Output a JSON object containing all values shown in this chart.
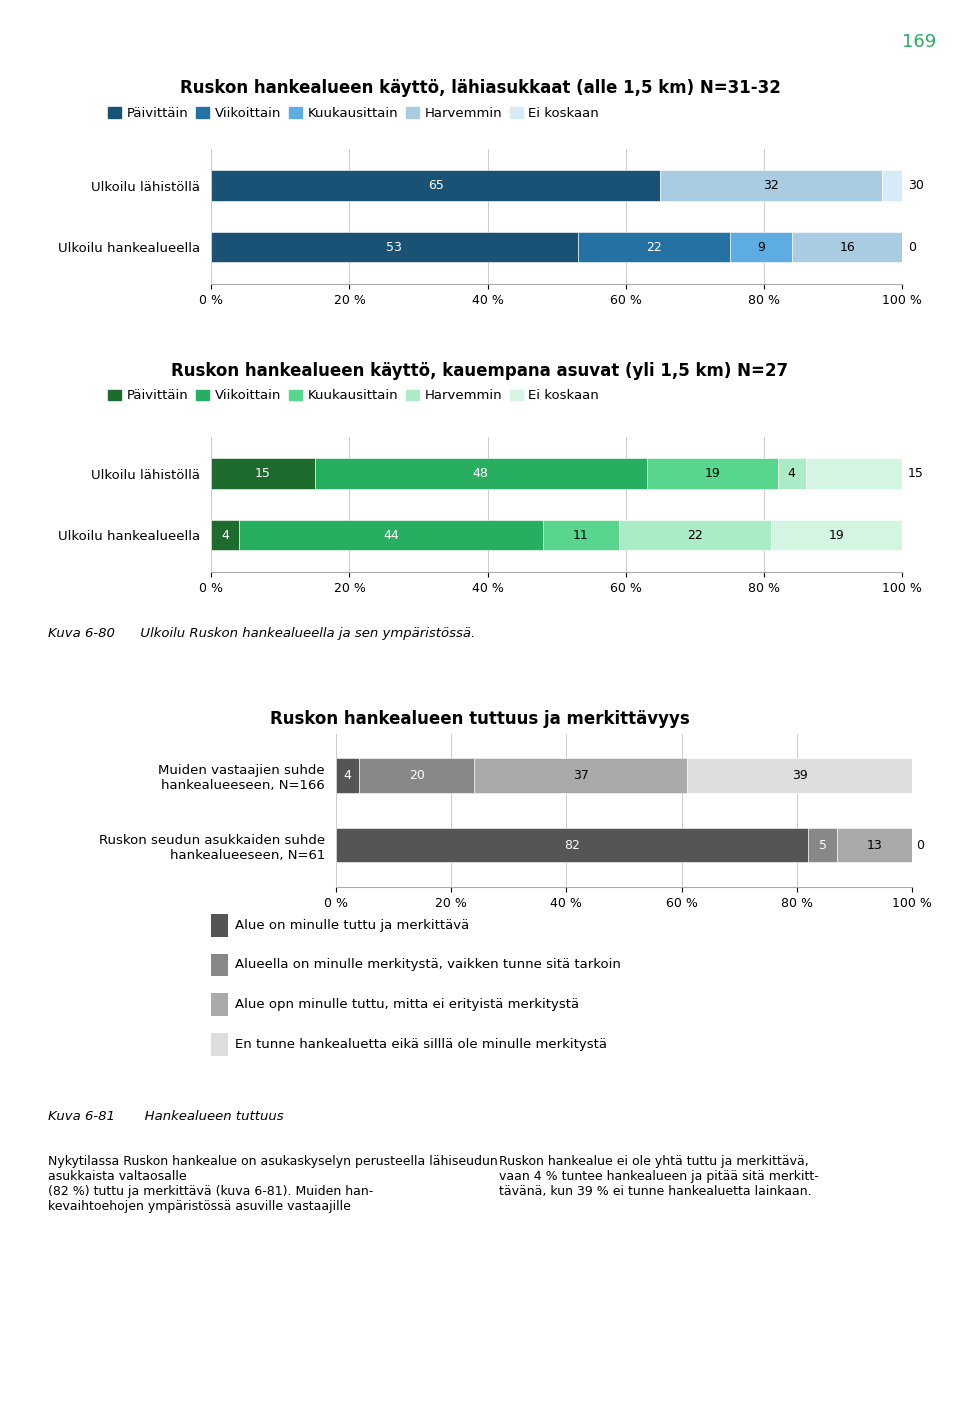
{
  "page_number": "169",
  "chart1": {
    "title": "Ruskon hankealueen käyttö, lähiasukkaat (alle 1,5 km) N=31-32",
    "legend_labels": [
      "Päivittäin",
      "Viikoittain",
      "Kuukausittain",
      "Harvemmin",
      "Ei koskaan"
    ],
    "colors": [
      "#1a5276",
      "#2471a3",
      "#5dade2",
      "#a9cce3",
      "#d6eaf8"
    ],
    "rows": [
      {
        "label": "Ulkoilu lähistöllä",
        "values": [
          65,
          0,
          0,
          32,
          30
        ]
      },
      {
        "label": "Ulkoilu hankealueella",
        "values": [
          53,
          22,
          9,
          16,
          0
        ]
      }
    ]
  },
  "chart2": {
    "title": "Ruskon hankealueen käyttö, kauempana asuvat (yli 1,5 km) N=27",
    "legend_labels": [
      "Päivittäin",
      "Viikoittain",
      "Kuukausittain",
      "Harvemmin",
      "Ei koskaan"
    ],
    "colors": [
      "#1e6b2e",
      "#27ae60",
      "#58d68d",
      "#abebc6",
      "#d5f5e3"
    ],
    "rows": [
      {
        "label": "Ulkoilu lähistöllä",
        "values": [
          15,
          48,
          19,
          4,
          15
        ]
      },
      {
        "label": "Ulkoilu hankealueella",
        "values": [
          4,
          44,
          11,
          22,
          19
        ]
      }
    ]
  },
  "kuva_6_80": "Kuva 6-80      Ulkoilu Ruskon hankealueella ja sen ympäristössä.",
  "chart3": {
    "title": "Ruskon hankealueen tuttuus ja merkittävyys",
    "legend_labels": [
      "Alue on minulle tuttu ja merkittävä",
      "Alueella on minulle merkitystä, vaikken tunne sitä tarkoin",
      "Alue opn minulle tuttu, mitta ei erityistä merkitystä",
      "En tunne hankealuetta eikä silllä ole minulle merkitystä"
    ],
    "colors": [
      "#555555",
      "#888888",
      "#aaaaaa",
      "#dddddd"
    ],
    "rows": [
      {
        "label": "Muiden vastaajien suhde\nhankealueeseen, N=166",
        "values": [
          4,
          20,
          37,
          39
        ]
      },
      {
        "label": "Ruskon seudun asukkaiden suhde\nhankealueeseen, N=61",
        "values": [
          82,
          5,
          13,
          0
        ]
      }
    ]
  },
  "kuva_6_81": "Kuva 6-81       Hankealueen tuttuus",
  "body_text_left": "Nykytilassa Ruskon hankealue on asukaskyselyn perusteella lähiseudun asukkaista valtaosalle\n(82 %) tuttu ja merkittävä (kuva 6-81). Muiden han-\nkevaihtoehojen ympäristössä asuville vastaajille",
  "body_text_right": "Ruskon hankealue ei ole yhtä tuttu ja merkittävä,\nvaan 4 % tuntee hankealueen ja pitää sitä merkitt-\ntävänä, kun 39 % ei tunne hankealuetta lainkaan."
}
